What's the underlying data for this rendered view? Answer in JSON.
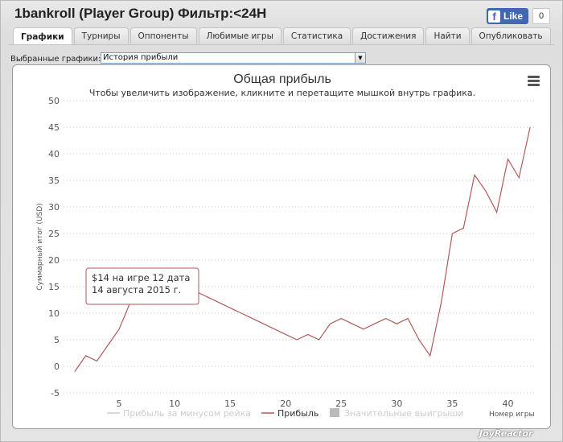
{
  "window": {
    "title": "1bankroll (Player Group) Фильтр:<24H"
  },
  "facebook": {
    "like_label": "Like",
    "like_count": "0",
    "icon": "facebook-f-icon"
  },
  "tabs": [
    {
      "label": "Графики",
      "active": true
    },
    {
      "label": "Турниры",
      "active": false
    },
    {
      "label": "Оппоненты",
      "active": false
    },
    {
      "label": "Любимые игры",
      "active": false
    },
    {
      "label": "Статистика",
      "active": false
    },
    {
      "label": "Достижения",
      "active": false
    },
    {
      "label": "Найти",
      "active": false
    },
    {
      "label": "Опубликовать",
      "active": false
    }
  ],
  "selector": {
    "label": "Выбранные графики:",
    "value": "История прибыли"
  },
  "chart_data": {
    "type": "line",
    "title": "Общая прибыль",
    "subtitle": "Чтобы увеличить изображение, кликните и перетащите мышкой внутрь графика.",
    "ylabel": "Суммарный итог (USD)",
    "xlabel": "Номер игры",
    "ylim": [
      -5,
      50
    ],
    "yticks": [
      -5,
      0,
      5,
      10,
      15,
      20,
      25,
      30,
      35,
      40,
      45,
      50
    ],
    "xlim": [
      0,
      42.5
    ],
    "xticks": [
      5,
      10,
      15,
      20,
      25,
      30,
      35,
      40
    ],
    "grid": "horizontal dotted",
    "legend_position": "bottom",
    "legend": [
      {
        "name": "Прибыль за минусом рейка",
        "color": "#cccccc",
        "marker": "line",
        "visible": false
      },
      {
        "name": "Прибыль",
        "color": "#b05a5a",
        "marker": "line",
        "visible": true
      },
      {
        "name": "Значительные выигрыши",
        "color": "#bbbbbb",
        "marker": "square",
        "visible": false
      }
    ],
    "series": [
      {
        "name": "Прибыль",
        "color": "#b05a5a",
        "x": [
          1,
          2,
          3,
          4,
          5,
          6,
          7,
          8,
          9,
          10,
          11,
          12,
          13,
          14,
          15,
          16,
          17,
          18,
          19,
          20,
          21,
          22,
          23,
          24,
          25,
          26,
          27,
          28,
          29,
          30,
          31,
          32,
          33,
          34,
          35,
          36,
          37,
          38,
          39,
          40,
          41,
          42
        ],
        "y": [
          -1,
          2,
          1,
          4,
          7,
          12,
          17,
          18,
          16,
          15,
          14,
          14,
          13,
          12,
          11,
          10,
          9,
          8,
          7,
          6,
          5,
          6,
          5,
          8,
          9,
          8,
          7,
          8,
          9,
          8,
          9,
          5,
          2,
          12,
          25,
          26,
          36,
          33,
          29,
          39,
          35.5,
          45
        ]
      }
    ],
    "tooltip": {
      "line1": "$14 на игре 12 дата",
      "line2": "14 августа 2015 г."
    }
  },
  "watermark": "JoyReactor"
}
